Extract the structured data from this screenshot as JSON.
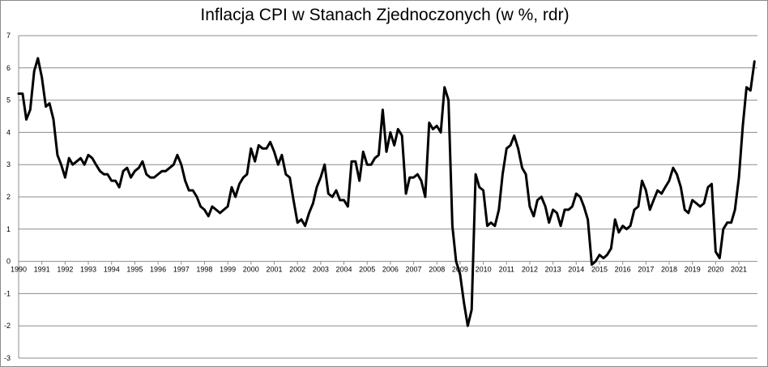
{
  "chart_data": {
    "type": "line",
    "title": "Inflacja CPI w Stanach Zjednoczonych (w %, rdr)",
    "xlabel": "",
    "ylabel": "",
    "ylim": [
      -3,
      7
    ],
    "xlim": [
      1990,
      2021.8
    ],
    "grid": true,
    "yticks": [
      "7",
      "6",
      "5",
      "4",
      "3",
      "2",
      "1",
      "0",
      "-1",
      "-2",
      "-3"
    ],
    "xticks": [
      "1990",
      "1991",
      "1992",
      "1993",
      "1994",
      "1995",
      "1996",
      "1997",
      "1998",
      "1999",
      "2000",
      "2001",
      "2002",
      "2003",
      "2004",
      "2005",
      "2006",
      "2007",
      "2008",
      "2009",
      "2010",
      "2011",
      "2012",
      "2013",
      "2014",
      "2015",
      "2016",
      "2017",
      "2018",
      "2019",
      "2020",
      "2021"
    ],
    "series": [
      {
        "color": "#000000",
        "x": [
          1990.0,
          1990.17,
          1990.33,
          1990.5,
          1990.67,
          1990.83,
          1991.0,
          1991.17,
          1991.33,
          1991.5,
          1991.67,
          1991.83,
          1992.0,
          1992.17,
          1992.33,
          1992.5,
          1992.67,
          1992.83,
          1993.0,
          1993.17,
          1993.33,
          1993.5,
          1993.67,
          1993.83,
          1994.0,
          1994.17,
          1994.33,
          1994.5,
          1994.67,
          1994.83,
          1995.0,
          1995.17,
          1995.33,
          1995.5,
          1995.67,
          1995.83,
          1996.0,
          1996.17,
          1996.33,
          1996.5,
          1996.67,
          1996.83,
          1997.0,
          1997.17,
          1997.33,
          1997.5,
          1997.67,
          1997.83,
          1998.0,
          1998.17,
          1998.33,
          1998.5,
          1998.67,
          1998.83,
          1999.0,
          1999.17,
          1999.33,
          1999.5,
          1999.67,
          1999.83,
          2000.0,
          2000.17,
          2000.33,
          2000.5,
          2000.67,
          2000.83,
          2001.0,
          2001.17,
          2001.33,
          2001.5,
          2001.67,
          2001.83,
          2002.0,
          2002.17,
          2002.33,
          2002.5,
          2002.67,
          2002.83,
          2003.0,
          2003.17,
          2003.33,
          2003.5,
          2003.67,
          2003.83,
          2004.0,
          2004.17,
          2004.33,
          2004.5,
          2004.67,
          2004.83,
          2005.0,
          2005.17,
          2005.33,
          2005.5,
          2005.67,
          2005.83,
          2006.0,
          2006.17,
          2006.33,
          2006.5,
          2006.67,
          2006.83,
          2007.0,
          2007.17,
          2007.33,
          2007.5,
          2007.67,
          2007.83,
          2008.0,
          2008.17,
          2008.33,
          2008.5,
          2008.67,
          2008.83,
          2009.0,
          2009.17,
          2009.33,
          2009.5,
          2009.67,
          2009.83,
          2010.0,
          2010.17,
          2010.33,
          2010.5,
          2010.67,
          2010.83,
          2011.0,
          2011.17,
          2011.33,
          2011.5,
          2011.67,
          2011.83,
          2012.0,
          2012.17,
          2012.33,
          2012.5,
          2012.67,
          2012.83,
          2013.0,
          2013.17,
          2013.33,
          2013.5,
          2013.67,
          2013.83,
          2014.0,
          2014.17,
          2014.33,
          2014.5,
          2014.67,
          2014.83,
          2015.0,
          2015.17,
          2015.33,
          2015.5,
          2015.67,
          2015.83,
          2016.0,
          2016.17,
          2016.33,
          2016.5,
          2016.67,
          2016.83,
          2017.0,
          2017.17,
          2017.33,
          2017.5,
          2017.67,
          2017.83,
          2018.0,
          2018.17,
          2018.33,
          2018.5,
          2018.67,
          2018.83,
          2019.0,
          2019.17,
          2019.33,
          2019.5,
          2019.67,
          2019.83,
          2020.0,
          2020.17,
          2020.33,
          2020.5,
          2020.67,
          2020.83,
          2021.0,
          2021.17,
          2021.33,
          2021.5,
          2021.67
        ],
        "y": [
          5.2,
          5.2,
          4.4,
          4.7,
          5.9,
          6.3,
          5.7,
          4.8,
          4.9,
          4.4,
          3.3,
          3.0,
          2.6,
          3.2,
          3.0,
          3.1,
          3.2,
          3.0,
          3.3,
          3.2,
          3.0,
          2.8,
          2.7,
          2.7,
          2.5,
          2.5,
          2.3,
          2.8,
          2.9,
          2.6,
          2.8,
          2.9,
          3.1,
          2.7,
          2.6,
          2.6,
          2.7,
          2.8,
          2.8,
          2.9,
          3.0,
          3.3,
          3.0,
          2.5,
          2.2,
          2.2,
          2.0,
          1.7,
          1.6,
          1.4,
          1.7,
          1.6,
          1.5,
          1.6,
          1.7,
          2.3,
          2.0,
          2.4,
          2.6,
          2.7,
          3.5,
          3.1,
          3.6,
          3.5,
          3.5,
          3.7,
          3.4,
          3.0,
          3.3,
          2.7,
          2.6,
          1.9,
          1.2,
          1.3,
          1.1,
          1.5,
          1.8,
          2.3,
          2.6,
          3.0,
          2.1,
          2.0,
          2.2,
          1.9,
          1.9,
          1.7,
          3.1,
          3.1,
          2.5,
          3.4,
          3.0,
          3.0,
          3.2,
          3.3,
          4.7,
          3.4,
          4.0,
          3.6,
          4.1,
          3.9,
          2.1,
          2.6,
          2.6,
          2.7,
          2.5,
          2.0,
          4.3,
          4.1,
          4.2,
          4.0,
          5.4,
          5.0,
          1.1,
          0.0,
          -0.4,
          -1.3,
          -2.0,
          -1.5,
          2.7,
          2.3,
          2.2,
          1.1,
          1.2,
          1.1,
          1.6,
          2.7,
          3.5,
          3.6,
          3.9,
          3.5,
          2.9,
          2.7,
          1.7,
          1.4,
          1.9,
          2.0,
          1.7,
          1.2,
          1.6,
          1.5,
          1.1,
          1.6,
          1.6,
          1.7,
          2.1,
          2.0,
          1.7,
          1.3,
          -0.1,
          0.0,
          0.2,
          0.1,
          0.2,
          0.4,
          1.3,
          0.9,
          1.1,
          1.0,
          1.1,
          1.6,
          1.7,
          2.5,
          2.2,
          1.6,
          1.9,
          2.2,
          2.1,
          2.3,
          2.5,
          2.9,
          2.7,
          2.3,
          1.6,
          1.5,
          1.9,
          1.8,
          1.7,
          1.8,
          2.3,
          2.4,
          0.3,
          0.1,
          1.0,
          1.2,
          1.2,
          1.6,
          2.6,
          4.2,
          5.4,
          5.3,
          6.2
        ]
      }
    ]
  }
}
